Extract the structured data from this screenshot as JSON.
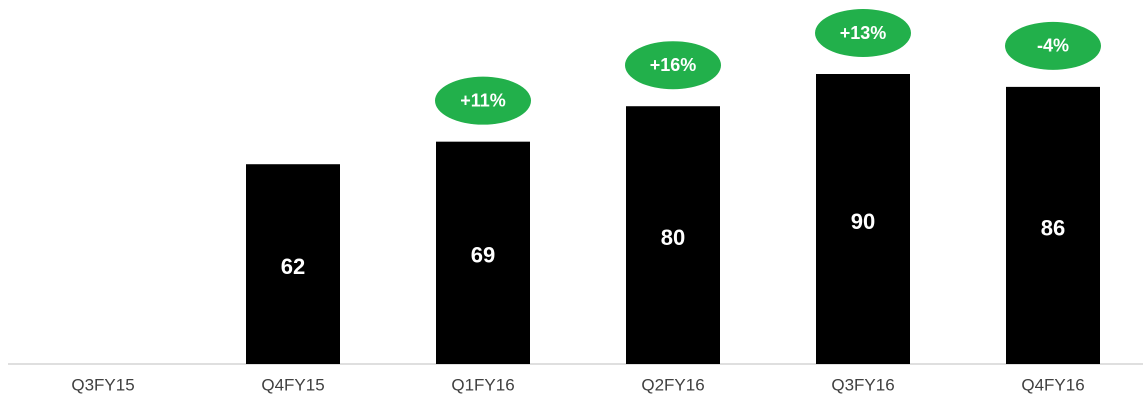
{
  "chart_data": {
    "type": "bar",
    "categories": [
      "Q3FY15",
      "Q4FY15",
      "Q1FY16",
      "Q2FY16",
      "Q3FY16",
      "Q4FY16"
    ],
    "values": [
      null,
      62,
      69,
      80,
      90,
      86
    ],
    "color": "#000000",
    "growth_labels": [
      null,
      null,
      "+11%",
      "+16%",
      "+13%",
      "-4%"
    ],
    "growth_color": "#22b04b"
  }
}
